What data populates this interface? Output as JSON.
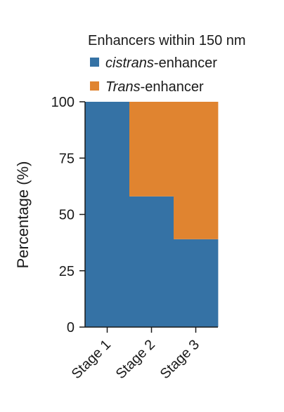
{
  "chart_data": {
    "type": "bar",
    "stacked": true,
    "categories": [
      "Stage 1",
      "Stage 2",
      "Stage 3"
    ],
    "series": [
      {
        "name": "cistrans-enhancer",
        "legend_italic": "cistrans",
        "legend_suffix": "-enhancer",
        "color": "#3572a5",
        "values": [
          100,
          58,
          39
        ]
      },
      {
        "name": "Trans-enhancer",
        "legend_italic": "Trans",
        "legend_suffix": "-enhancer",
        "color": "#e08430",
        "values": [
          0,
          42,
          61
        ]
      }
    ],
    "legend_title": "Enhancers within 150 nm",
    "ylabel": "Percentage (%)",
    "xlabel": "",
    "ylim": [
      0,
      100
    ],
    "yticks": [
      0,
      25,
      50,
      75,
      100
    ],
    "grid": false,
    "legend_position": "top-right"
  }
}
